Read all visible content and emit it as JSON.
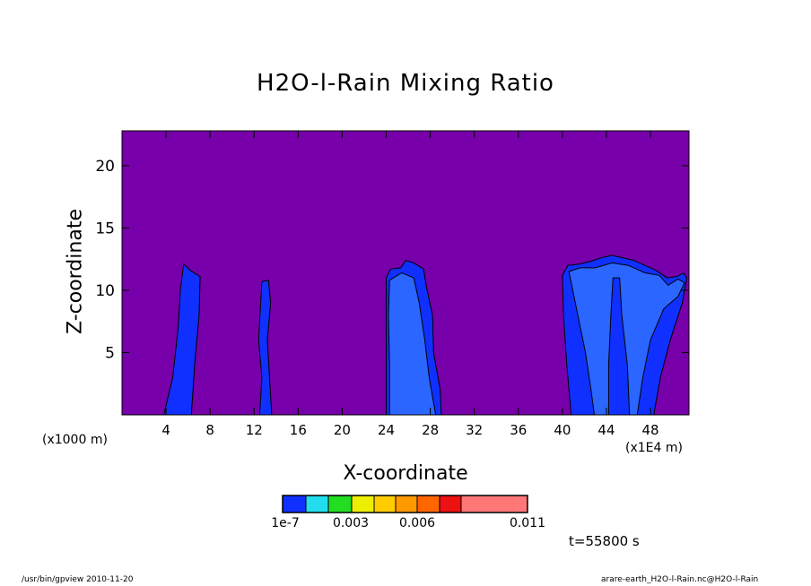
{
  "figure": {
    "title": "H2O-l-Rain Mixing Ratio",
    "timestamp": "t=55800 s",
    "footer_left": "/usr/bin/gpview   2010-11-20",
    "footer_right": "arare-earth_H2O-l-Rain.nc@H2O-l-Rain"
  },
  "chart_data": {
    "type": "heatmap",
    "title": "H2O-l-Rain Mixing Ratio",
    "xlabel": "X-coordinate",
    "ylabel": "Z-coordinate",
    "x_unit_left": "(x1000 m)",
    "x_unit_right": "(x1E4 m)",
    "xlim": [
      0,
      51.5
    ],
    "ylim": [
      0,
      22.8
    ],
    "x_ticks": [
      4,
      8,
      12,
      16,
      20,
      24,
      28,
      32,
      36,
      40,
      44,
      48
    ],
    "y_ticks": [
      5,
      10,
      15,
      20
    ],
    "grid": false,
    "background_color": "#7700aa",
    "colorbar": {
      "levels": [
        "1e-7",
        "0.003",
        "0.006",
        "0.011"
      ],
      "colors": [
        "#1030ff",
        "#22ddee",
        "#22dd22",
        "#eeee00",
        "#ffcc00",
        "#ff9900",
        "#ff6600",
        "#ee1111",
        "#ff7777"
      ]
    },
    "contours": [
      {
        "level": "1e-7",
        "color": "#1030ff",
        "points": [
          [
            3.8,
            0
          ],
          [
            4.6,
            3
          ],
          [
            5.1,
            7
          ],
          [
            5.3,
            10
          ],
          [
            5.6,
            12.1
          ],
          [
            6.2,
            11.6
          ],
          [
            7.1,
            11.1
          ],
          [
            7.0,
            8
          ],
          [
            6.6,
            4
          ],
          [
            6.3,
            0
          ]
        ]
      },
      {
        "level": "1e-7",
        "color": "#1030ff",
        "points": [
          [
            12.5,
            0
          ],
          [
            12.7,
            3
          ],
          [
            12.4,
            6
          ],
          [
            12.6,
            9
          ],
          [
            12.7,
            10.7
          ],
          [
            13.3,
            10.8
          ],
          [
            13.5,
            9
          ],
          [
            13.2,
            6
          ],
          [
            13.4,
            3
          ],
          [
            13.6,
            0
          ]
        ]
      },
      {
        "level": "1e-7",
        "color": "#1030ff",
        "points": [
          [
            24.0,
            0
          ],
          [
            24.0,
            5
          ],
          [
            24.0,
            9
          ],
          [
            24.0,
            11.0
          ],
          [
            24.4,
            11.7
          ],
          [
            25.3,
            11.8
          ],
          [
            25.8,
            12.4
          ],
          [
            26.5,
            12.2
          ],
          [
            27.4,
            11.7
          ],
          [
            27.6,
            10.5
          ],
          [
            28.2,
            8
          ],
          [
            28.3,
            5
          ],
          [
            28.9,
            2
          ],
          [
            29.0,
            0
          ]
        ]
      },
      {
        "level": "1e-7",
        "color": "#1030ff",
        "points": [
          [
            40.8,
            0
          ],
          [
            40.4,
            4
          ],
          [
            40.1,
            8
          ],
          [
            40.0,
            11.2
          ],
          [
            40.5,
            12.0
          ],
          [
            41.5,
            12.1
          ],
          [
            42.5,
            12.3
          ],
          [
            43.5,
            12.6
          ],
          [
            44.5,
            12.8
          ],
          [
            45.5,
            12.6
          ],
          [
            46.5,
            12.4
          ],
          [
            47.5,
            12.0
          ],
          [
            48.5,
            11.6
          ],
          [
            49.5,
            11.0
          ],
          [
            50.4,
            11.1
          ],
          [
            51.0,
            11.4
          ],
          [
            51.3,
            11.0
          ],
          [
            50.9,
            9
          ],
          [
            49.8,
            6
          ],
          [
            48.9,
            3
          ],
          [
            48.3,
            0
          ]
        ]
      },
      {
        "level": "0.0005",
        "color": "#2a66ff",
        "points": [
          [
            24.3,
            0
          ],
          [
            24.3,
            4
          ],
          [
            24.2,
            8
          ],
          [
            24.3,
            10.8
          ],
          [
            25.4,
            11.4
          ],
          [
            26.5,
            11.0
          ],
          [
            27.0,
            9
          ],
          [
            27.5,
            6
          ],
          [
            27.9,
            3
          ],
          [
            28.5,
            0
          ]
        ]
      },
      {
        "level": "0.0005",
        "color": "#2a66ff",
        "points": [
          [
            40.6,
            11.5
          ],
          [
            41.4,
            8
          ],
          [
            42.1,
            5
          ],
          [
            42.6,
            2
          ],
          [
            42.9,
            0
          ],
          [
            44.2,
            0
          ],
          [
            44.2,
            4
          ],
          [
            44.4,
            8
          ],
          [
            44.6,
            11
          ],
          [
            45.2,
            11
          ],
          [
            45.4,
            8
          ],
          [
            45.9,
            4
          ],
          [
            46.1,
            0
          ],
          [
            46.8,
            0
          ],
          [
            47.3,
            3
          ],
          [
            48.0,
            6
          ],
          [
            49.2,
            8.5
          ],
          [
            50.5,
            9.5
          ],
          [
            51.1,
            10.6
          ],
          [
            50.5,
            10.9
          ],
          [
            49.6,
            10.4
          ],
          [
            48.8,
            11.2
          ],
          [
            47.5,
            11.4
          ],
          [
            46.0,
            12.0
          ],
          [
            44.5,
            12.2
          ],
          [
            43.0,
            11.8
          ],
          [
            41.6,
            11.8
          ]
        ]
      }
    ]
  }
}
